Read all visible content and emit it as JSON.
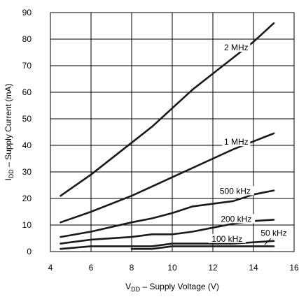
{
  "chart_data": {
    "type": "line",
    "xlabel": {
      "main": "V",
      "sub": "DD",
      "rest": " – Supply Voltage (V)"
    },
    "ylabel": {
      "main": "I",
      "sub": "DD",
      "rest": " – Supply Current (mA)"
    },
    "xlim": [
      4,
      16
    ],
    "ylim": [
      0,
      90
    ],
    "x_ticks": [
      "4",
      "6",
      "8",
      "10",
      "12",
      "14",
      "16"
    ],
    "y_ticks": [
      "0",
      "10",
      "20",
      "30",
      "40",
      "50",
      "60",
      "70",
      "80",
      "90"
    ],
    "grid": true,
    "series": [
      {
        "name": "2 MHz",
        "x": [
          4.5,
          6,
          8,
          9,
          10,
          11,
          12,
          13,
          14,
          15
        ],
        "y": [
          21,
          29,
          41,
          47,
          54,
          61,
          67,
          73,
          79,
          86
        ]
      },
      {
        "name": "1 MHz",
        "x": [
          4.5,
          6,
          8,
          9,
          10,
          11,
          12,
          13,
          14,
          15
        ],
        "y": [
          11,
          15,
          21,
          24.5,
          28,
          31.5,
          35,
          38.5,
          41.5,
          44.5
        ]
      },
      {
        "name": "500 kHz",
        "x": [
          4.5,
          6,
          8,
          9,
          10,
          11,
          12,
          13,
          14,
          15
        ],
        "y": [
          5.5,
          7.5,
          11,
          12.5,
          14.5,
          17,
          18,
          19,
          21.5,
          23
        ]
      },
      {
        "name": "200 kHz",
        "x": [
          4.5,
          6,
          8,
          9,
          10,
          11,
          12,
          13,
          14,
          15
        ],
        "y": [
          3,
          4.5,
          5.5,
          6.5,
          6.5,
          7.5,
          9,
          10.5,
          11.5,
          12
        ]
      },
      {
        "name": "100 kHz",
        "x": [
          4.5,
          6,
          8,
          9,
          10,
          11,
          12,
          13,
          14,
          15
        ],
        "y": [
          1,
          2,
          2,
          2,
          3,
          3,
          3,
          3,
          3.5,
          4
        ]
      },
      {
        "name": "50 kHz",
        "x": [
          8,
          9,
          10,
          11,
          12,
          13,
          14,
          15
        ],
        "y": [
          1,
          1,
          2,
          2,
          2,
          2,
          2,
          2
        ]
      }
    ]
  }
}
